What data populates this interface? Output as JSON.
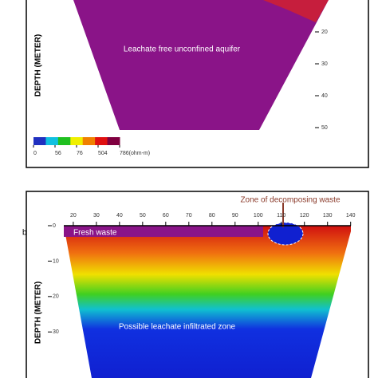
{
  "chart_data": [
    {
      "type": "contour",
      "y_label": "DEPTH (METER)",
      "annotation": "Leachate free unconfined aquifer",
      "ylim": [
        10,
        52
      ],
      "yticks": [
        20,
        30,
        40,
        50
      ],
      "colorbar": {
        "ticks": [
          0,
          56,
          76,
          504,
          {
            "value": 786,
            "label": "786(ohm-m)"
          }
        ],
        "colors": [
          "#2030c0",
          "#10c0e0",
          "#20c020",
          "#f0f000",
          "#f08000",
          "#e01010",
          "#800040"
        ]
      }
    },
    {
      "type": "contour",
      "label": "b",
      "y_label": "DEPTH (METER)",
      "annotations": [
        "Zone of decomposing waste",
        "Fresh waste",
        "Possible leachate infiltrated zone"
      ],
      "xlim": [
        9,
        147
      ],
      "xticks": [
        20,
        30,
        40,
        50,
        60,
        70,
        80,
        90,
        100,
        110,
        120,
        130,
        140
      ],
      "ylim": [
        0,
        43
      ],
      "yticks": [
        0,
        10,
        20,
        30
      ]
    }
  ]
}
